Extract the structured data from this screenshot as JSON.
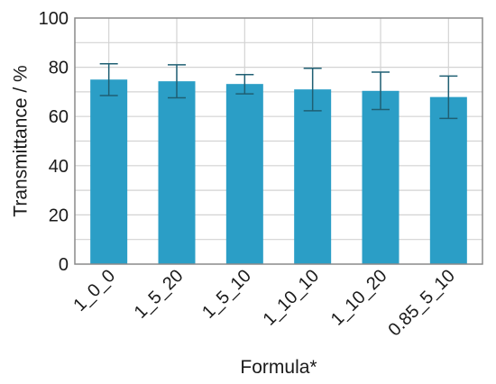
{
  "chart_data": {
    "type": "bar",
    "title": "",
    "xlabel": "Formula*",
    "ylabel": "Transmittance / %",
    "categories": [
      "1_0_0",
      "1_5_20",
      "1_5_10",
      "1_10_10",
      "1_10_20",
      "0.85_5_10"
    ],
    "values": [
      75.0,
      74.3,
      73.2,
      71.0,
      70.4,
      67.9
    ],
    "error_upper": [
      81.4,
      81.0,
      77.0,
      79.6,
      78.0,
      76.4
    ],
    "error_lower": [
      68.5,
      67.6,
      69.2,
      62.3,
      62.8,
      59.2
    ],
    "ylim": [
      0,
      100
    ],
    "yticks": [
      0,
      20,
      40,
      60,
      80,
      100
    ],
    "grid": true,
    "legend": "none",
    "colors": {
      "bar": "#2b9ec6",
      "error_bar": "#1f5f73",
      "grid": "#d3d3d3",
      "frame": "#8a8a8a",
      "text": "#1a1a1a"
    }
  }
}
